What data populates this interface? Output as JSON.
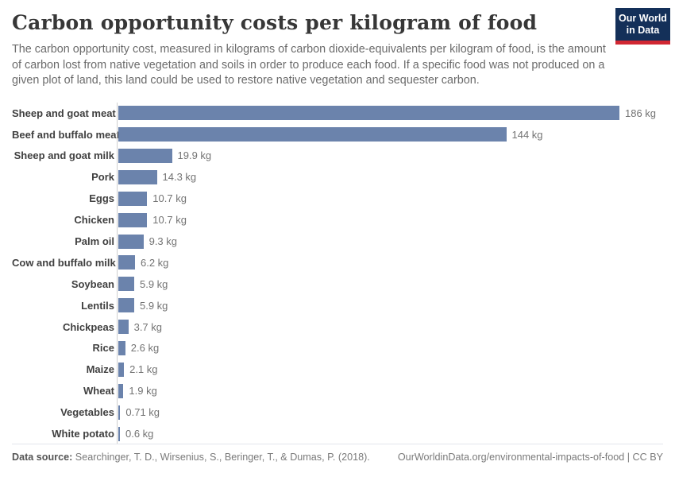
{
  "header": {
    "title": "Carbon opportunity costs per kilogram of food",
    "subtitle": "The carbon opportunity cost, measured in kilograms of carbon dioxide-equivalents per kilogram of food, is the amount of carbon lost from native vegetation and soils in order to produce each food. If a specific food was not produced on a given plot of land, this land could be used to restore native vegetation and sequester carbon.",
    "logo": {
      "line1": "Our World",
      "line2": "in Data",
      "bg_color": "#143059",
      "accent_color": "#d12732"
    }
  },
  "chart_data": {
    "type": "bar",
    "orientation": "horizontal",
    "title": "Carbon opportunity costs per kilogram of food",
    "unit": "kg CO2-equivalents per kg of food",
    "xlim": [
      0,
      186
    ],
    "grid": false,
    "bar_color": "#6b83ac",
    "categories": [
      "Sheep and goat meat",
      "Beef and buffalo meat",
      "Sheep and goat milk",
      "Pork",
      "Eggs",
      "Chicken",
      "Palm oil",
      "Cow and buffalo milk",
      "Soybean",
      "Lentils",
      "Chickpeas",
      "Rice",
      "Maize",
      "Wheat",
      "Vegetables",
      "White potato"
    ],
    "values": [
      186,
      144,
      19.9,
      14.3,
      10.7,
      10.7,
      9.3,
      6.2,
      5.9,
      5.9,
      3.7,
      2.6,
      2.1,
      1.9,
      0.71,
      0.6
    ],
    "value_labels": [
      "186 kg",
      "144 kg",
      "19.9 kg",
      "14.3 kg",
      "10.7 kg",
      "10.7 kg",
      "9.3 kg",
      "6.2 kg",
      "5.9 kg",
      "5.9 kg",
      "3.7 kg",
      "2.6 kg",
      "2.1 kg",
      "1.9 kg",
      "0.71 kg",
      "0.6 kg"
    ]
  },
  "footer": {
    "data_source_label": "Data source:",
    "data_source_text": "Searchinger, T. D., Wirsenius, S., Beringer, T., & Dumas, P. (2018).",
    "citation": "OurWorldinData.org/environmental-impacts-of-food | CC BY"
  }
}
